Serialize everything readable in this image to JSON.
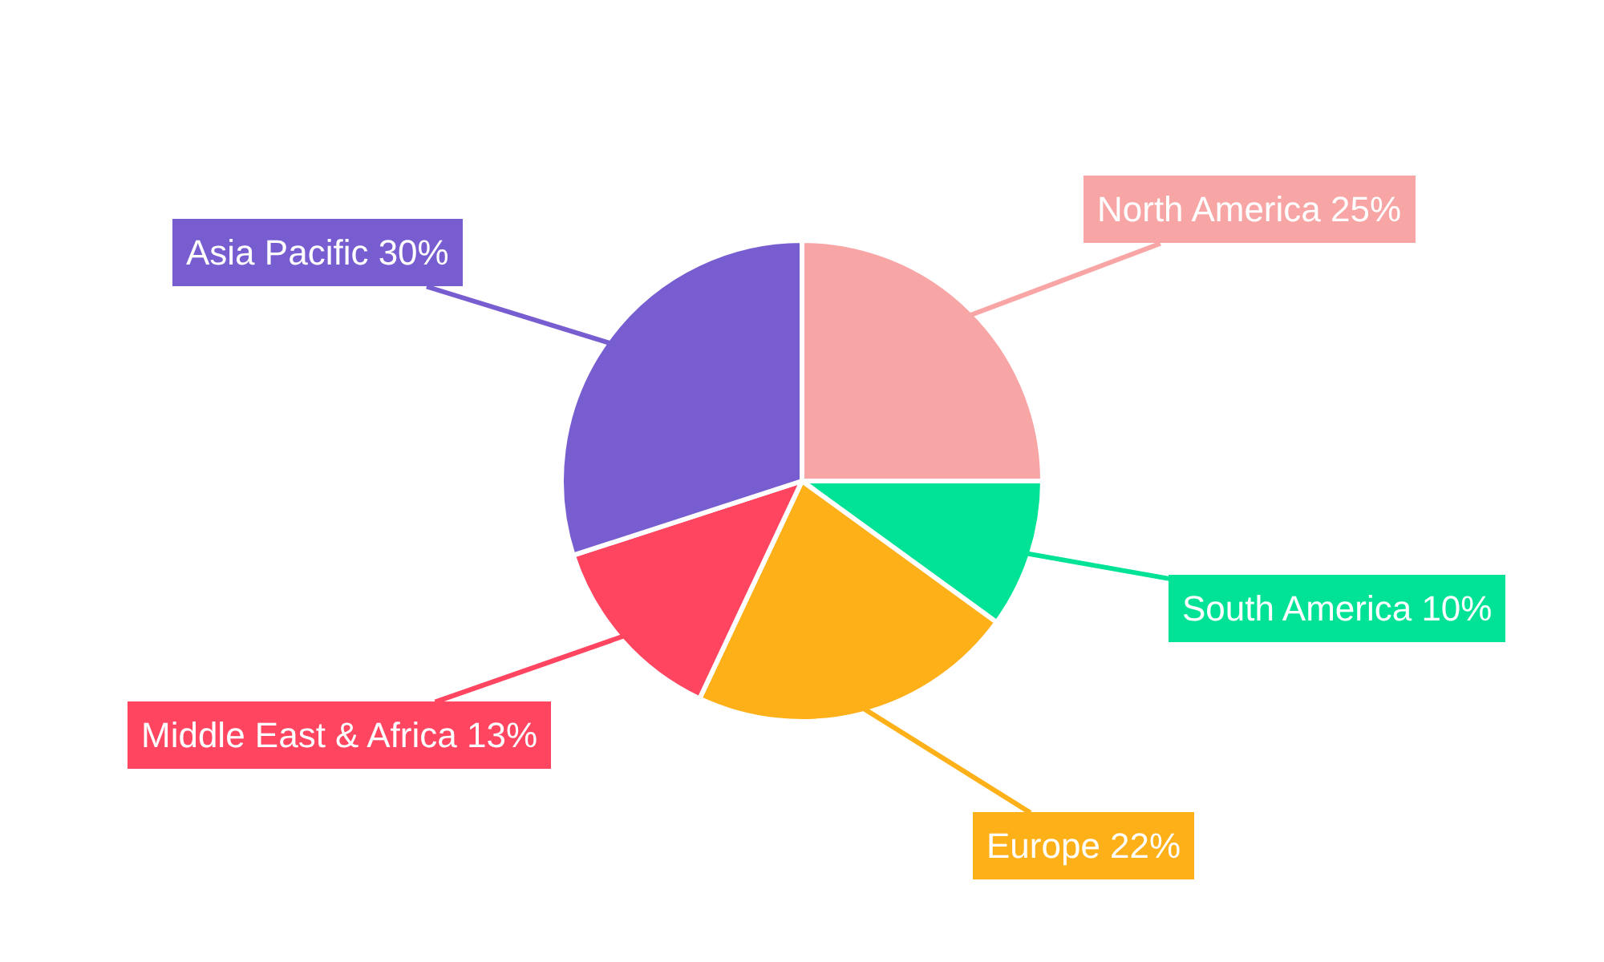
{
  "chart_data": {
    "type": "pie",
    "categories": [
      "North America",
      "South America",
      "Europe",
      "Middle East & Africa",
      "Asia Pacific"
    ],
    "values": [
      25,
      10,
      22,
      13,
      30
    ],
    "value_labels": [
      "25%",
      "10%",
      "22%",
      "13%",
      "30%"
    ],
    "colors": [
      "#f8a5a5",
      "#00e396",
      "#feb019",
      "#ff4560",
      "#775dd0"
    ],
    "legend": false
  }
}
